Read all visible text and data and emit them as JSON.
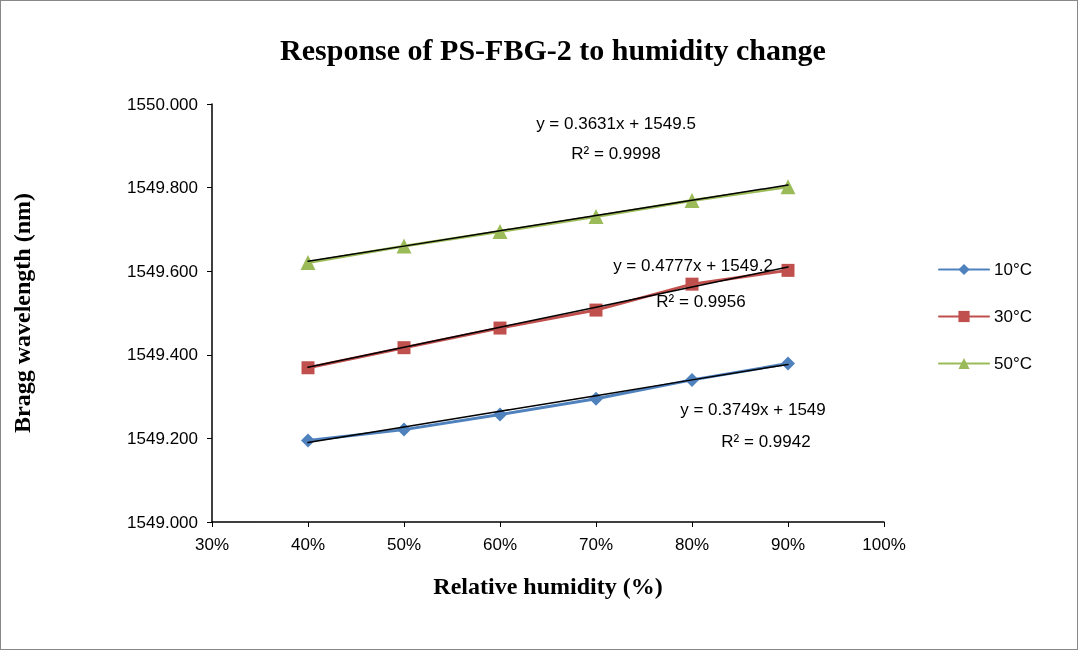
{
  "chart_data": {
    "type": "line",
    "title": "Response of PS-FBG-2 to humidity change",
    "xlabel": "Relative humidity (%)",
    "ylabel": "Bragg wavelength (nm)",
    "x": [
      40,
      50,
      60,
      70,
      80,
      90
    ],
    "series": [
      {
        "name": "10°C",
        "color": "#4f81bd",
        "marker": "diamond",
        "values": [
          1549.195,
          1549.221,
          1549.257,
          1549.295,
          1549.34,
          1549.379
        ]
      },
      {
        "name": "30°C",
        "color": "#c0504d",
        "marker": "square",
        "values": [
          1549.369,
          1549.417,
          1549.464,
          1549.507,
          1549.569,
          1549.602
        ]
      },
      {
        "name": "50°C",
        "color": "#9bbb59",
        "marker": "triangle",
        "values": [
          1549.621,
          1549.66,
          1549.695,
          1549.731,
          1549.769,
          1549.802
        ]
      },
      {
        "type": "line",
        "color": "#000000",
        "marker": "none",
        "values": [
          1549.19,
          1549.227,
          1549.265,
          1549.302,
          1549.34,
          1549.377
        ]
      },
      {
        "type": "line",
        "color": "#000000",
        "marker": "none",
        "values": [
          1549.37,
          1549.418,
          1549.466,
          1549.514,
          1549.562,
          1549.61
        ]
      },
      {
        "type": "line",
        "color": "#000000",
        "marker": "none",
        "values": [
          1549.624,
          1549.66,
          1549.697,
          1549.733,
          1549.77,
          1549.806
        ]
      }
    ],
    "xlim": [
      30,
      100
    ],
    "xticks": [
      {
        "value": 30,
        "label": "30%"
      },
      {
        "value": 40,
        "label": "40%"
      },
      {
        "value": 50,
        "label": "50%"
      },
      {
        "value": 60,
        "label": "60%"
      },
      {
        "value": 70,
        "label": "70%"
      },
      {
        "value": 80,
        "label": "80%"
      },
      {
        "value": 90,
        "label": "90%"
      },
      {
        "value": 100,
        "label": "100%"
      }
    ],
    "ylim": [
      1549,
      1550
    ],
    "yticks": [
      {
        "value": 1549,
        "label": "1549.000"
      },
      {
        "value": 1549.2,
        "label": "1549.200"
      },
      {
        "value": 1549.4,
        "label": "1549.400"
      },
      {
        "value": 1549.6,
        "label": "1549.600"
      },
      {
        "value": 1549.8,
        "label": "1549.800"
      },
      {
        "value": 1550,
        "label": "1550.000"
      }
    ],
    "annotations": [
      "y = 0.3631x + 1549.5",
      "R² = 0.9998",
      "y = 0.4777x + 1549.2",
      "R² = 0.9956",
      "y = 0.3749x + 1549",
      "R² = 0.9942"
    ],
    "grid": false,
    "legend": "right",
    "line_style": "solid"
  }
}
